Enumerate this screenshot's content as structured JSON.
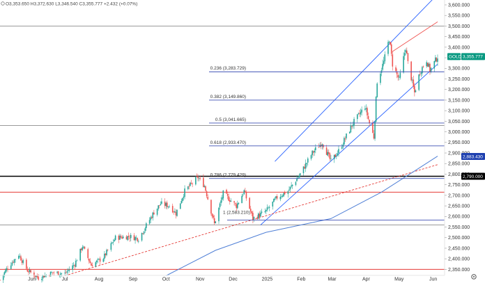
{
  "header": {
    "ohlc_text": "O3,353.650 H3,372.630 L3,346.540 C3,355.777 +2.432 (+0.07%)"
  },
  "colors": {
    "up": "#26a69a",
    "down": "#ef5350",
    "fib_line": "#3f51b5",
    "channel": "#2962ff",
    "red_level": "#e53935",
    "ma": "#4f7fd6",
    "badge_green": "#089981",
    "badge_blue": "#1e40af",
    "badge_black": "#000000"
  },
  "chart_data": {
    "type": "candlestick",
    "symbol": "GOLD",
    "x": {
      "start": "2024-05-03",
      "end": "2025-06-05",
      "ticks": [
        {
          "date": "2024-06-01",
          "label": "Jun"
        },
        {
          "date": "2024-07-01",
          "label": "Jul"
        },
        {
          "date": "2024-08-01",
          "label": "Aug"
        },
        {
          "date": "2024-09-01",
          "label": "Sep"
        },
        {
          "date": "2024-10-01",
          "label": "Oct"
        },
        {
          "date": "2024-11-01",
          "label": "Nov"
        },
        {
          "date": "2024-12-01",
          "label": "Dec"
        },
        {
          "date": "2025-01-01",
          "label": "2025"
        },
        {
          "date": "2025-02-01",
          "label": "Feb"
        },
        {
          "date": "2025-03-01",
          "label": "Mar"
        },
        {
          "date": "2025-04-01",
          "label": "Apr"
        },
        {
          "date": "2025-05-01",
          "label": "May"
        },
        {
          "date": "2025-06-01",
          "label": "Jun"
        }
      ]
    },
    "y": {
      "min": 2325,
      "max": 3600,
      "ticks": [
        "2,350.000",
        "2,400.000",
        "2,450.000",
        "2,500.000",
        "2,550.000",
        "2,600.000",
        "2,650.000",
        "2,700.000",
        "2,750.000",
        "2,800.000",
        "2,850.000",
        "2,900.000",
        "2,950.000",
        "3,000.000",
        "3,050.000",
        "3,100.000",
        "3,150.000",
        "3,200.000",
        "3,250.000",
        "3,300.000",
        "3,350.000",
        "3,400.000",
        "3,450.000",
        "3,500.000",
        "3,550.000",
        "3,600.000"
      ]
    },
    "price_anchors": [
      [
        "2024-05-03",
        2300
      ],
      [
        "2024-05-10",
        2360
      ],
      [
        "2024-05-20",
        2420
      ],
      [
        "2024-05-28",
        2345
      ],
      [
        "2024-06-07",
        2310
      ],
      [
        "2024-06-20",
        2335
      ],
      [
        "2024-07-01",
        2330
      ],
      [
        "2024-07-10",
        2375
      ],
      [
        "2024-07-17",
        2460
      ],
      [
        "2024-07-25",
        2370
      ],
      [
        "2024-08-05",
        2405
      ],
      [
        "2024-08-16",
        2500
      ],
      [
        "2024-08-29",
        2505
      ],
      [
        "2024-09-06",
        2495
      ],
      [
        "2024-09-20",
        2620
      ],
      [
        "2024-09-26",
        2660
      ],
      [
        "2024-10-04",
        2650
      ],
      [
        "2024-10-10",
        2615
      ],
      [
        "2024-10-18",
        2720
      ],
      [
        "2024-10-30",
        2785
      ],
      [
        "2024-11-05",
        2745
      ],
      [
        "2024-11-14",
        2565
      ],
      [
        "2024-11-22",
        2710
      ],
      [
        "2024-12-04",
        2650
      ],
      [
        "2024-12-11",
        2720
      ],
      [
        "2024-12-19",
        2590
      ],
      [
        "2024-12-31",
        2625
      ],
      [
        "2025-01-10",
        2690
      ],
      [
        "2025-01-20",
        2720
      ],
      [
        "2025-01-31",
        2800
      ],
      [
        "2025-02-11",
        2900
      ],
      [
        "2025-02-20",
        2950
      ],
      [
        "2025-02-28",
        2860
      ],
      [
        "2025-03-07",
        2910
      ],
      [
        "2025-03-20",
        3040
      ],
      [
        "2025-03-31",
        3120
      ],
      [
        "2025-04-03",
        3060
      ],
      [
        "2025-04-08",
        2975
      ],
      [
        "2025-04-11",
        3240
      ],
      [
        "2025-04-17",
        3330
      ],
      [
        "2025-04-22",
        3440
      ],
      [
        "2025-04-25",
        3320
      ],
      [
        "2025-05-01",
        3245
      ],
      [
        "2025-05-07",
        3400
      ],
      [
        "2025-05-09",
        3325
      ],
      [
        "2025-05-15",
        3185
      ],
      [
        "2025-05-20",
        3285
      ],
      [
        "2025-05-26",
        3340
      ],
      [
        "2025-05-29",
        3290
      ],
      [
        "2025-06-05",
        3356
      ]
    ],
    "ohlc": {
      "open": 3353.65,
      "high": 3372.63,
      "low": 3346.54,
      "close": 3355.777,
      "change": 2.432,
      "change_percent": 0.07
    },
    "fibonacci": [
      {
        "label": "0.236 (3,283.729)",
        "value": 3283.729
      },
      {
        "label": "0.382 (3,149.860)",
        "value": 3149.86
      },
      {
        "label": "0.5 (3,041.665)",
        "value": 3041.665
      },
      {
        "label": "0.618 (2,933.470)",
        "value": 2933.47
      },
      {
        "label": "0.786 (2,779.429)",
        "value": 2779.429
      },
      {
        "label": "1 (2,583.210)",
        "value": 2583.21
      }
    ],
    "horizontal_levels": {
      "gray": [
        3500,
        3030,
        2560
      ],
      "red": [
        2715,
        2350
      ],
      "black": 2790
    },
    "channel": {
      "upper": [
        [
          "2025-01-08",
          2860
        ],
        [
          "2025-06-05",
          3650
        ]
      ],
      "lower": [
        [
          "2024-12-26",
          2560
        ],
        [
          "2025-06-05",
          3320
        ]
      ],
      "mid": [
        [
          "2025-04-25",
          3380
        ],
        [
          "2025-06-05",
          3520
        ]
      ]
    },
    "trendline": [
      [
        "2024-07-01",
        2320
      ],
      [
        "2025-06-05",
        2845
      ]
    ],
    "moving_average": [
      [
        "2024-10-01",
        2320
      ],
      [
        "2024-11-15",
        2440
      ],
      [
        "2024-12-31",
        2525
      ],
      [
        "2025-02-28",
        2590
      ],
      [
        "2025-04-15",
        2715
      ],
      [
        "2025-05-15",
        2815
      ],
      [
        "2025-06-05",
        2885
      ]
    ],
    "price_badges": [
      {
        "label": "GOLD",
        "value": "3,355.777",
        "y": 3355.777,
        "color_key": "badge_green"
      },
      {
        "label": "",
        "value": "2,883.430",
        "y": 2883.43,
        "color_key": "badge_blue"
      },
      {
        "label": "",
        "value": "2,790.000",
        "y": 2790,
        "color_key": "badge_black"
      }
    ]
  }
}
